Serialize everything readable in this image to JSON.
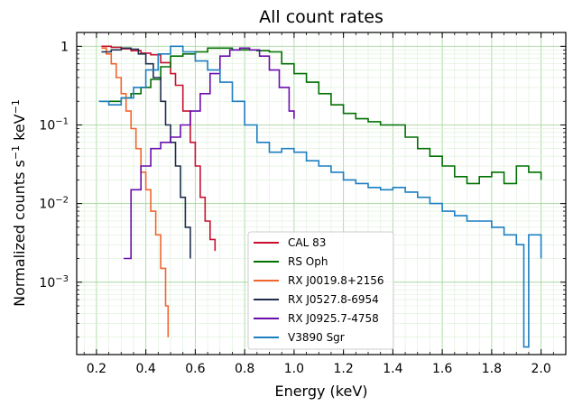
{
  "chart_data": {
    "type": "line",
    "title": "All count rates",
    "xlabel": "Energy (keV)",
    "ylabel_parts": {
      "main": "Normalized counts s",
      "exp1": "−1",
      "mid": " keV",
      "exp2": "−1"
    },
    "xlim": [
      0.12,
      2.1
    ],
    "ylim": [
      0.00012,
      1.5
    ],
    "yscale": "log",
    "grid": true,
    "legend_position": "lower-center",
    "x_ticks": [
      0.2,
      0.4,
      0.6,
      0.8,
      1.0,
      1.2,
      1.4,
      1.6,
      1.8,
      2.0
    ],
    "x_tick_labels": [
      "0.2",
      "0.4",
      "0.6",
      "0.8",
      "1.0",
      "1.2",
      "1.4",
      "1.6",
      "1.8",
      "2.0"
    ],
    "y_ticks": [
      1,
      0.1,
      0.01,
      0.001
    ],
    "y_tick_labels": [
      {
        "base": "1",
        "exp": ""
      },
      {
        "base": "10",
        "exp": "−1"
      },
      {
        "base": "10",
        "exp": "−2"
      },
      {
        "base": "10",
        "exp": "−3"
      }
    ],
    "series": [
      {
        "name": "CAL 83",
        "color": "#c8102e",
        "x": [
          0.22,
          0.26,
          0.3,
          0.34,
          0.38,
          0.42,
          0.46,
          0.5,
          0.52,
          0.55,
          0.58,
          0.6,
          0.62,
          0.64,
          0.66,
          0.68
        ],
        "y": [
          1.0,
          0.97,
          0.93,
          0.88,
          0.82,
          0.78,
          0.62,
          0.45,
          0.32,
          0.15,
          0.06,
          0.03,
          0.012,
          0.006,
          0.0035,
          0.0025
        ]
      },
      {
        "name": "RS Oph",
        "color": "#007000",
        "x": [
          0.22,
          0.26,
          0.3,
          0.34,
          0.38,
          0.42,
          0.46,
          0.5,
          0.55,
          0.6,
          0.65,
          0.7,
          0.75,
          0.8,
          0.85,
          0.9,
          0.95,
          1.0,
          1.05,
          1.1,
          1.15,
          1.2,
          1.25,
          1.3,
          1.35,
          1.4,
          1.45,
          1.5,
          1.55,
          1.6,
          1.65,
          1.7,
          1.75,
          1.8,
          1.85,
          1.9,
          1.95,
          2.0
        ],
        "y": [
          0.2,
          0.2,
          0.22,
          0.25,
          0.3,
          0.38,
          0.55,
          0.75,
          0.8,
          0.85,
          0.95,
          0.95,
          0.9,
          0.9,
          0.88,
          0.85,
          0.6,
          0.45,
          0.35,
          0.25,
          0.18,
          0.14,
          0.12,
          0.11,
          0.1,
          0.1,
          0.07,
          0.05,
          0.04,
          0.03,
          0.022,
          0.018,
          0.022,
          0.025,
          0.018,
          0.03,
          0.025,
          0.02
        ]
      },
      {
        "name": "RX J0019.8+2156",
        "color": "#f26430",
        "x": [
          0.22,
          0.24,
          0.26,
          0.28,
          0.3,
          0.32,
          0.34,
          0.36,
          0.38,
          0.4,
          0.42,
          0.44,
          0.46,
          0.48,
          0.49
        ],
        "y": [
          0.95,
          0.8,
          0.6,
          0.4,
          0.25,
          0.15,
          0.09,
          0.05,
          0.025,
          0.015,
          0.008,
          0.004,
          0.0015,
          0.0005,
          0.0002
        ]
      },
      {
        "name": "RX J0527.8-6954",
        "color": "#1f2d4d",
        "x": [
          0.22,
          0.26,
          0.3,
          0.34,
          0.37,
          0.4,
          0.43,
          0.46,
          0.48,
          0.5,
          0.52,
          0.54,
          0.56,
          0.58
        ],
        "y": [
          0.85,
          0.9,
          0.95,
          0.92,
          0.8,
          0.6,
          0.4,
          0.2,
          0.1,
          0.06,
          0.03,
          0.012,
          0.005,
          0.002
        ]
      },
      {
        "name": "RX J0925.7-4758",
        "color": "#6a0dad",
        "x": [
          0.31,
          0.34,
          0.38,
          0.42,
          0.46,
          0.5,
          0.54,
          0.58,
          0.62,
          0.66,
          0.7,
          0.74,
          0.78,
          0.82,
          0.86,
          0.9,
          0.94,
          0.98,
          1.0
        ],
        "y": [
          0.002,
          0.015,
          0.03,
          0.05,
          0.06,
          0.07,
          0.1,
          0.15,
          0.25,
          0.45,
          0.75,
          0.9,
          0.95,
          0.9,
          0.75,
          0.5,
          0.3,
          0.15,
          0.12
        ]
      },
      {
        "name": "V3890 Sgr",
        "color": "#1b7fc0",
        "x": [
          0.21,
          0.25,
          0.3,
          0.35,
          0.4,
          0.45,
          0.5,
          0.55,
          0.6,
          0.65,
          0.7,
          0.75,
          0.8,
          0.85,
          0.9,
          0.95,
          1.0,
          1.05,
          1.1,
          1.15,
          1.2,
          1.25,
          1.3,
          1.35,
          1.4,
          1.45,
          1.5,
          1.55,
          1.6,
          1.65,
          1.7,
          1.75,
          1.8,
          1.85,
          1.9,
          1.93,
          1.95,
          2.0
        ],
        "y": [
          0.2,
          0.18,
          0.22,
          0.3,
          0.5,
          0.8,
          1.0,
          0.85,
          0.65,
          0.5,
          0.35,
          0.2,
          0.1,
          0.06,
          0.045,
          0.05,
          0.045,
          0.035,
          0.03,
          0.025,
          0.02,
          0.018,
          0.016,
          0.015,
          0.016,
          0.014,
          0.012,
          0.01,
          0.008,
          0.007,
          0.006,
          0.006,
          0.005,
          0.004,
          0.003,
          0.00015,
          0.004,
          0.002
        ]
      }
    ]
  }
}
